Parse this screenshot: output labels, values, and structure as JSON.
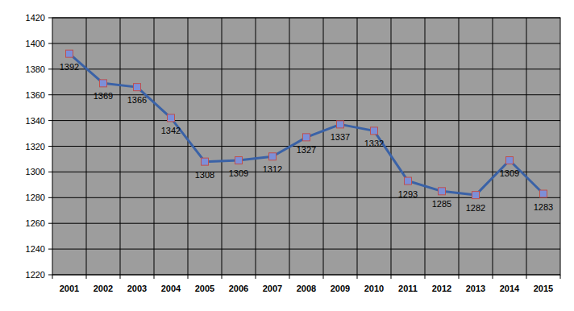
{
  "chart_data": {
    "type": "line",
    "categories": [
      "2001",
      "2002",
      "2003",
      "2004",
      "2005",
      "2006",
      "2007",
      "2008",
      "2009",
      "2010",
      "2011",
      "2012",
      "2013",
      "2014",
      "2015"
    ],
    "values": [
      1392,
      1369,
      1366,
      1342,
      1308,
      1309,
      1312,
      1327,
      1337,
      1332,
      1293,
      1285,
      1282,
      1309,
      1283
    ],
    "color": "#3a62a7",
    "marker": "square",
    "ylim": [
      1220,
      1420
    ],
    "yticks": [
      1220,
      1240,
      1260,
      1280,
      1300,
      1320,
      1340,
      1360,
      1380,
      1400,
      1420
    ],
    "grid": true,
    "data_labels": true
  }
}
